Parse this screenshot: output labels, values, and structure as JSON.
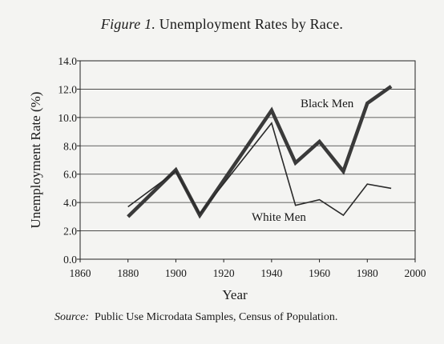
{
  "figure": {
    "label": "Figure 1.",
    "title_text": "Unemployment Rates by Race."
  },
  "source": {
    "label": "Source:",
    "text": "Public Use Microdata Samples, Census of Population."
  },
  "chart_data": {
    "type": "line",
    "title": "Figure 1. Unemployment Rates by Race.",
    "xlabel": "Year",
    "ylabel": "Unemployment Rate (%)",
    "xlim": [
      1860,
      2000
    ],
    "ylim": [
      0,
      14
    ],
    "x_ticks": [
      1860,
      1880,
      1900,
      1920,
      1940,
      1960,
      1980,
      2000
    ],
    "y_ticks": [
      0,
      2,
      4,
      6,
      8,
      10,
      12,
      14
    ],
    "x_tick_labels": [
      "1860",
      "1880",
      "1900",
      "1920",
      "1940",
      "1960",
      "1980",
      "2000"
    ],
    "y_tick_labels": [
      "0.0",
      "2.0",
      "4.0",
      "6.0",
      "8.0",
      "10.0",
      "12.0",
      "14.0"
    ],
    "grid": "horizontal",
    "legend": "inline labels",
    "series": [
      {
        "name": "Black Men",
        "x": [
          1880,
          1900,
          1910,
          1940,
          1950,
          1960,
          1970,
          1980,
          1990
        ],
        "y": [
          3.0,
          6.3,
          3.1,
          10.5,
          6.8,
          8.3,
          6.2,
          11.0,
          12.2
        ],
        "color": "#3a3a3a",
        "style": "thick"
      },
      {
        "name": "White Men",
        "x": [
          1880,
          1900,
          1910,
          1940,
          1950,
          1960,
          1970,
          1980,
          1990
        ],
        "y": [
          3.7,
          6.2,
          3.2,
          9.6,
          3.8,
          4.2,
          3.1,
          5.3,
          5.0
        ],
        "color": "#2a2a2a",
        "style": "thin"
      }
    ]
  }
}
